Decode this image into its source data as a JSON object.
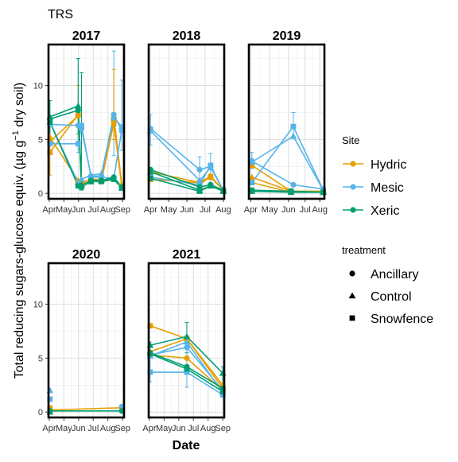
{
  "chart_data": {
    "type": "line",
    "title": "TRS",
    "xlabel": "Date",
    "ylabel_pre": "Total reducing sugars-glucose equiv. (",
    "ylabel_mu": "µ",
    "ylabel_mid": "g g",
    "ylabel_sup": "−1",
    "ylabel_post": " dry soil)",
    "ylim": [
      -0.5,
      13.8
    ],
    "yticks": [
      0,
      5,
      10
    ],
    "grid": true,
    "legend_position": "right",
    "site_legend": {
      "title": "Site",
      "items": [
        {
          "name": "Hydric",
          "color": "#E69F00"
        },
        {
          "name": "Mesic",
          "color": "#56B4E9"
        },
        {
          "name": "Xeric",
          "color": "#009E73"
        }
      ]
    },
    "treatment_legend": {
      "title": "treatment",
      "items": [
        {
          "name": "Ancillary",
          "shape": "circle"
        },
        {
          "name": "Control",
          "shape": "triangle"
        },
        {
          "name": "Snowfence",
          "shape": "square"
        }
      ]
    },
    "panels": [
      {
        "year": "2017",
        "xlim": [
          3.95,
          9.1
        ],
        "xticks": [
          {
            "m": 4.0,
            "label": "Apr"
          },
          {
            "m": 5.0,
            "label": "May"
          },
          {
            "m": 6.0,
            "label": "Jun"
          },
          {
            "m": 7.0,
            "label": "Jul"
          },
          {
            "m": 8.0,
            "label": "Aug"
          },
          {
            "m": 9.0,
            "label": "Sep"
          }
        ],
        "series": [
          {
            "site": "Hydric",
            "treatment": "Ancillary",
            "x": [
              4.05,
              5.97,
              6.2,
              6.85,
              7.55,
              8.4,
              8.95
            ],
            "y": [
              4.8,
              7.2,
              1.1,
              1.2,
              1.2,
              6.8,
              0.7
            ]
          },
          {
            "site": "Hydric",
            "treatment": "Control",
            "x": [
              4.05,
              5.97,
              6.2,
              6.85,
              7.55,
              8.4,
              8.95
            ],
            "y": [
              5.2,
              1.2,
              1.0,
              1.3,
              1.3,
              7.2,
              0.8
            ]
          },
          {
            "site": "Hydric",
            "treatment": "Snowfence",
            "x": [
              4.05,
              5.97,
              6.2,
              6.85,
              7.55,
              8.4,
              8.95
            ],
            "y": [
              3.8,
              7.3,
              0.9,
              1.1,
              1.1,
              6.5,
              0.6
            ]
          },
          {
            "site": "Mesic",
            "treatment": "Ancillary",
            "x": [
              4.05,
              5.97,
              6.2,
              6.85,
              7.55,
              8.4,
              8.95
            ],
            "y": [
              6.4,
              6.3,
              6.0,
              1.6,
              1.6,
              7.3,
              5.8
            ]
          },
          {
            "site": "Mesic",
            "treatment": "Control",
            "x": [
              4.05,
              5.97,
              6.2,
              6.85,
              7.55,
              8.4,
              8.95
            ],
            "y": [
              6.6,
              1.0,
              1.3,
              1.7,
              1.8,
              7.0,
              6.2
            ]
          },
          {
            "site": "Mesic",
            "treatment": "Snowfence",
            "x": [
              4.05,
              5.97,
              6.2,
              6.85,
              7.55,
              8.4,
              8.95
            ],
            "y": [
              4.6,
              4.6,
              6.3,
              1.5,
              1.5,
              1.4,
              5.9
            ]
          },
          {
            "site": "Xeric",
            "treatment": "Ancillary",
            "x": [
              4.05,
              5.97,
              6.2,
              6.85,
              7.55,
              8.4,
              8.95
            ],
            "y": [
              6.9,
              7.7,
              0.7,
              1.2,
              1.2,
              1.5,
              0.6
            ]
          },
          {
            "site": "Xeric",
            "treatment": "Control",
            "x": [
              4.05,
              5.97,
              6.2,
              6.85,
              7.55,
              8.4,
              8.95
            ],
            "y": [
              7.1,
              8.1,
              0.8,
              1.1,
              1.2,
              1.4,
              0.5
            ]
          },
          {
            "site": "Xeric",
            "treatment": "Snowfence",
            "x": [
              4.05,
              5.97,
              6.2,
              6.85,
              7.55,
              8.4,
              8.95
            ],
            "y": [
              6.6,
              0.7,
              0.6,
              1.1,
              1.1,
              1.3,
              0.5
            ]
          }
        ],
        "errorbars": [
          {
            "site": "Hydric",
            "x": 4.05,
            "y": 4.8,
            "lo": 1.7,
            "hi": 7.0
          },
          {
            "site": "Hydric",
            "x": 5.97,
            "y": 7.2,
            "lo": 4.5,
            "hi": 10.0
          },
          {
            "site": "Mesic",
            "x": 5.97,
            "y": 6.3,
            "lo": 3.8,
            "hi": 12.5
          },
          {
            "site": "Mesic",
            "x": 8.4,
            "y": 7.3,
            "lo": 3.5,
            "hi": 13.2
          },
          {
            "site": "Mesic",
            "x": 8.95,
            "y": 5.8,
            "lo": 4.0,
            "hi": 10.5
          },
          {
            "site": "Xeric",
            "x": 4.05,
            "y": 6.9,
            "lo": 4.5,
            "hi": 8.6
          },
          {
            "site": "Xeric",
            "x": 5.97,
            "y": 7.7,
            "lo": 5.5,
            "hi": 12.5
          },
          {
            "site": "Xeric",
            "x": 6.2,
            "y": 0.7,
            "lo": 0.3,
            "hi": 11.2
          },
          {
            "site": "Hydric",
            "x": 8.4,
            "y": 6.8,
            "lo": 5.0,
            "hi": 11.5
          }
        ]
      },
      {
        "year": "2018",
        "xlim": [
          4.9,
          9.05
        ],
        "xticks": [
          {
            "m": 5.0,
            "label": "Apr"
          },
          {
            "m": 6.0,
            "label": "May"
          },
          {
            "m": 7.0,
            "label": "Jun"
          },
          {
            "m": 8.0,
            "label": "Jul"
          },
          {
            "m": 9.0,
            "label": "Aug"
          }
        ],
        "series": [
          {
            "site": "Hydric",
            "treatment": "Ancillary",
            "x": [
              5.0,
              7.7,
              8.3,
              9.0
            ],
            "y": [
              2.0,
              1.0,
              1.6,
              0.3
            ]
          },
          {
            "site": "Hydric",
            "treatment": "Control",
            "x": [
              5.0,
              7.7,
              8.3,
              9.0
            ],
            "y": [
              1.5,
              0.8,
              1.6,
              0.3
            ]
          },
          {
            "site": "Hydric",
            "treatment": "Snowfence",
            "x": [
              5.0,
              7.7,
              8.3,
              9.0
            ],
            "y": [
              1.3,
              1.0,
              1.5,
              0.3
            ]
          },
          {
            "site": "Mesic",
            "treatment": "Ancillary",
            "x": [
              5.0,
              7.7,
              8.3,
              9.0
            ],
            "y": [
              6.0,
              2.2,
              2.5,
              0.3
            ]
          },
          {
            "site": "Mesic",
            "treatment": "Control",
            "x": [
              5.0,
              7.7,
              8.3,
              9.0
            ],
            "y": [
              5.8,
              1.2,
              2.4,
              0.3
            ]
          },
          {
            "site": "Mesic",
            "treatment": "Snowfence",
            "x": [
              5.0,
              7.7,
              8.3,
              9.0
            ],
            "y": [
              1.5,
              0.8,
              2.6,
              0.2
            ]
          },
          {
            "site": "Xeric",
            "treatment": "Ancillary",
            "x": [
              5.0,
              7.7,
              8.3,
              9.0
            ],
            "y": [
              2.2,
              0.6,
              0.8,
              0.3
            ]
          },
          {
            "site": "Xeric",
            "treatment": "Control",
            "x": [
              5.0,
              7.7,
              8.3,
              9.0
            ],
            "y": [
              2.0,
              0.3,
              0.7,
              0.2
            ]
          },
          {
            "site": "Xeric",
            "treatment": "Snowfence",
            "x": [
              5.0,
              7.7,
              8.3,
              9.0
            ],
            "y": [
              1.4,
              0.2,
              0.7,
              0.2
            ]
          }
        ],
        "errorbars": [
          {
            "site": "Mesic",
            "x": 5.0,
            "y": 6.0,
            "lo": 4.5,
            "hi": 7.3
          },
          {
            "site": "Mesic",
            "x": 8.3,
            "y": 2.5,
            "lo": 1.0,
            "hi": 3.7
          },
          {
            "site": "Mesic",
            "x": 7.7,
            "y": 2.2,
            "lo": 0.9,
            "hi": 3.4
          }
        ]
      },
      {
        "year": "2019",
        "xlim": [
          4.92,
          8.2
        ],
        "xticks": [
          {
            "m": 5.0,
            "label": "Apr"
          },
          {
            "m": 5.82,
            "label": "May"
          },
          {
            "m": 6.64,
            "label": "Jun"
          },
          {
            "m": 7.36,
            "label": "Jul"
          },
          {
            "m": 8.0,
            "label": "Aug"
          }
        ],
        "series": [
          {
            "site": "Hydric",
            "treatment": "Ancillary",
            "x": [
              5.05,
              6.75,
              8.15
            ],
            "y": [
              1.0,
              0.1,
              0.2
            ]
          },
          {
            "site": "Hydric",
            "treatment": "Control",
            "x": [
              5.05,
              6.75,
              8.15
            ],
            "y": [
              1.5,
              0.2,
              0.2
            ]
          },
          {
            "site": "Hydric",
            "treatment": "Snowfence",
            "x": [
              5.05,
              6.75,
              8.15
            ],
            "y": [
              2.6,
              0.2,
              0.2
            ]
          },
          {
            "site": "Mesic",
            "treatment": "Ancillary",
            "x": [
              5.05,
              6.85,
              8.15
            ],
            "y": [
              3.0,
              0.8,
              0.4
            ]
          },
          {
            "site": "Mesic",
            "treatment": "Control",
            "x": [
              5.05,
              6.85,
              8.15
            ],
            "y": [
              2.9,
              5.3,
              0.3
            ]
          },
          {
            "site": "Mesic",
            "treatment": "Snowfence",
            "x": [
              5.05,
              6.85,
              8.15
            ],
            "y": [
              1.0,
              6.2,
              0.3
            ]
          },
          {
            "site": "Xeric",
            "treatment": "Ancillary",
            "x": [
              5.05,
              6.75,
              8.15
            ],
            "y": [
              0.2,
              0.2,
              0.1
            ]
          },
          {
            "site": "Xeric",
            "treatment": "Control",
            "x": [
              5.05,
              6.75,
              8.15
            ],
            "y": [
              0.2,
              0.1,
              0.1
            ]
          },
          {
            "site": "Xeric",
            "treatment": "Snowfence",
            "x": [
              5.05,
              6.75,
              8.15
            ],
            "y": [
              0.3,
              0.2,
              0.1
            ]
          }
        ],
        "errorbars": [
          {
            "site": "Mesic",
            "x": 6.85,
            "y": 6.2,
            "lo": 5.2,
            "hi": 7.5
          },
          {
            "site": "Mesic",
            "x": 5.05,
            "y": 3.0,
            "lo": 2.3,
            "hi": 3.8
          }
        ]
      },
      {
        "year": "2020",
        "xlim": [
          3.95,
          9.1
        ],
        "xticks": [
          {
            "m": 4.0,
            "label": "Apr"
          },
          {
            "m": 5.0,
            "label": "May"
          },
          {
            "m": 6.0,
            "label": "Jun"
          },
          {
            "m": 7.0,
            "label": "Jul"
          },
          {
            "m": 8.0,
            "label": "Aug"
          },
          {
            "m": 9.0,
            "label": "Sep"
          }
        ],
        "series": [
          {
            "site": "Hydric",
            "treatment": "Ancillary",
            "x": [
              4.05
            ],
            "y": [
              0.4
            ]
          },
          {
            "site": "Hydric",
            "treatment": "Snowfence",
            "x": [
              4.05,
              8.95
            ],
            "y": [
              0.2,
              0.4
            ]
          },
          {
            "site": "Mesic",
            "treatment": "Control",
            "x": [
              4.05
            ],
            "y": [
              2.0
            ]
          },
          {
            "site": "Mesic",
            "treatment": "Snowfence",
            "x": [
              4.05
            ],
            "y": [
              1.2
            ]
          },
          {
            "site": "Mesic",
            "treatment": "Ancillary",
            "x": [
              8.95
            ],
            "y": [
              0.5
            ]
          },
          {
            "site": "Xeric",
            "treatment": "Ancillary",
            "x": [
              4.05,
              8.95
            ],
            "y": [
              0.1,
              0.1
            ]
          },
          {
            "site": "Xeric",
            "treatment": "Control",
            "x": [
              4.05
            ],
            "y": [
              0.0
            ]
          }
        ],
        "errorbars": []
      },
      {
        "year": "2021",
        "xlim": [
          3.95,
          9.1
        ],
        "xticks": [
          {
            "m": 4.0,
            "label": "Apr"
          },
          {
            "m": 5.0,
            "label": "May"
          },
          {
            "m": 6.0,
            "label": "Jun"
          },
          {
            "m": 7.0,
            "label": "Jul"
          },
          {
            "m": 8.0,
            "label": "Aug"
          },
          {
            "m": 9.0,
            "label": "Sep"
          }
        ],
        "series": [
          {
            "site": "Hydric",
            "treatment": "Ancillary",
            "x": [
              4.05,
              6.55,
              9.0
            ],
            "y": [
              5.3,
              5.0,
              2.0
            ]
          },
          {
            "site": "Hydric",
            "treatment": "Control",
            "x": [
              4.05,
              6.55,
              9.0
            ],
            "y": [
              5.6,
              6.8,
              2.5
            ]
          },
          {
            "site": "Hydric",
            "treatment": "Snowfence",
            "x": [
              4.05,
              6.55,
              9.0
            ],
            "y": [
              8.0,
              6.8,
              2.2
            ]
          },
          {
            "site": "Mesic",
            "treatment": "Ancillary",
            "x": [
              4.05,
              6.55,
              9.0
            ],
            "y": [
              5.3,
              6.0,
              2.0
            ]
          },
          {
            "site": "Mesic",
            "treatment": "Control",
            "x": [
              4.05,
              6.55,
              9.0
            ],
            "y": [
              5.2,
              6.5,
              1.8
            ]
          },
          {
            "site": "Mesic",
            "treatment": "Snowfence",
            "x": [
              4.05,
              6.55,
              9.0
            ],
            "y": [
              3.7,
              3.7,
              1.6
            ]
          },
          {
            "site": "Xeric",
            "treatment": "Ancillary",
            "x": [
              4.05,
              6.55,
              9.0
            ],
            "y": [
              5.5,
              4.2,
              2.2
            ]
          },
          {
            "site": "Xeric",
            "treatment": "Control",
            "x": [
              4.05,
              6.55,
              9.0
            ],
            "y": [
              6.2,
              7.0,
              3.6
            ]
          },
          {
            "site": "Xeric",
            "treatment": "Snowfence",
            "x": [
              4.05,
              6.55,
              9.0
            ],
            "y": [
              5.4,
              4.0,
              1.9
            ]
          }
        ],
        "errorbars": [
          {
            "site": "Xeric",
            "x": 6.55,
            "y": 7.0,
            "lo": 5.5,
            "hi": 8.3
          },
          {
            "site": "Mesic",
            "x": 6.55,
            "y": 6.0,
            "lo": 2.3,
            "hi": 7.0
          },
          {
            "site": "Mesic",
            "x": 4.05,
            "y": 3.7,
            "lo": 2.8,
            "hi": 6.5
          },
          {
            "site": "Xeric",
            "x": 9.0,
            "y": 3.6,
            "lo": 2.5,
            "hi": 4.2
          }
        ]
      }
    ]
  }
}
